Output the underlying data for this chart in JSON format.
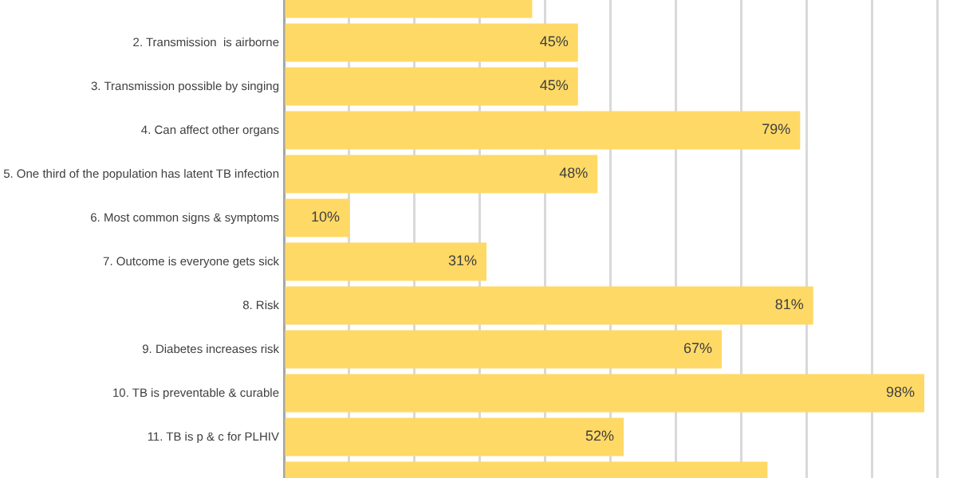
{
  "chart_data": {
    "type": "bar",
    "orientation": "horizontal",
    "categories": [
      null,
      "2. Transmission  is airborne",
      "3. Transmission possible by singing",
      "4. Can affect other organs",
      "5. One third of the population has latent TB infection",
      "6. Most common signs & symptoms",
      "7. Outcome is everyone gets sick",
      "8. Risk",
      "9. Diabetes increases risk",
      "10. TB is preventable & curable",
      "11. TB is p & c for PLHIV",
      null
    ],
    "values": [
      38,
      45,
      45,
      79,
      48,
      10,
      31,
      81,
      67,
      98,
      52,
      74
    ],
    "value_labels": [
      null,
      "45%",
      "45%",
      "79%",
      "48%",
      "10%",
      "31%",
      "81%",
      "67%",
      "98%",
      "52%",
      null
    ],
    "color": "#ffd966",
    "xlim": [
      0,
      103
    ],
    "xticks": [
      {
        "value": 0,
        "label": null
      },
      {
        "value": 10,
        "label": null
      },
      {
        "value": 20,
        "label": null
      },
      {
        "value": 30,
        "label": null
      },
      {
        "value": 40,
        "label": null
      },
      {
        "value": 50,
        "label": null
      },
      {
        "value": 60,
        "label": null
      },
      {
        "value": 70,
        "label": null
      },
      {
        "value": 80,
        "label": null
      },
      {
        "value": 90,
        "label": null
      },
      {
        "value": 100,
        "label": null
      }
    ],
    "grid": "x",
    "tick_labels": "y"
  }
}
